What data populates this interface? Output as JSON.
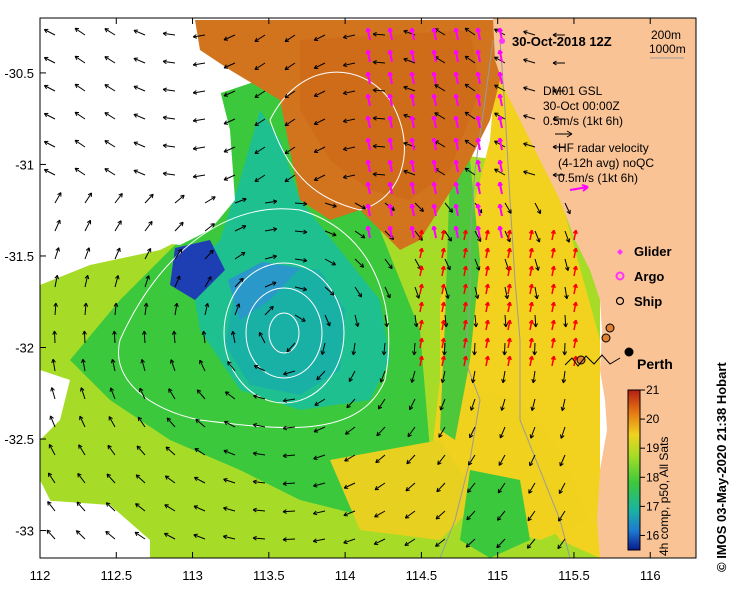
{
  "title": "30-Oct-2018 12Z",
  "depth_legend": [
    "200m",
    "1000m"
  ],
  "mooring": {
    "name": "DM01 GSL",
    "time": "30-Oct 00:00Z",
    "scale": "0.5m/s (1kt 6h)"
  },
  "radar": {
    "line1": "HF radar velocity",
    "line2": "(4-12h avg) noQC",
    "scale": "0.5m/s (1kt 6h)"
  },
  "markers": {
    "glider": "Glider",
    "argo": "Argo",
    "ship": "Ship"
  },
  "city": "Perth",
  "colorbar": {
    "ticks": [
      "21",
      "20",
      "19",
      "18",
      "17",
      "16"
    ],
    "caption": "4h comp, p50, All Sats",
    "min": 15.5,
    "max": 21
  },
  "credit": "© IMOS 03-May-2020 21:38 Hobart",
  "axes": {
    "x_ticks": [
      "112",
      "112.5",
      "113",
      "113.5",
      "114",
      "114.5",
      "115",
      "115.5",
      "116"
    ],
    "y_ticks": [
      "-30.5",
      "-31",
      "-31.5",
      "-32",
      "-32.5",
      "-33"
    ]
  },
  "colors": {
    "land": "#F9C396",
    "glider": "#ff33ff",
    "radar_arrow": "#ff00ff",
    "hf_vector": "#ff0000",
    "contour": "#ffffff"
  }
}
